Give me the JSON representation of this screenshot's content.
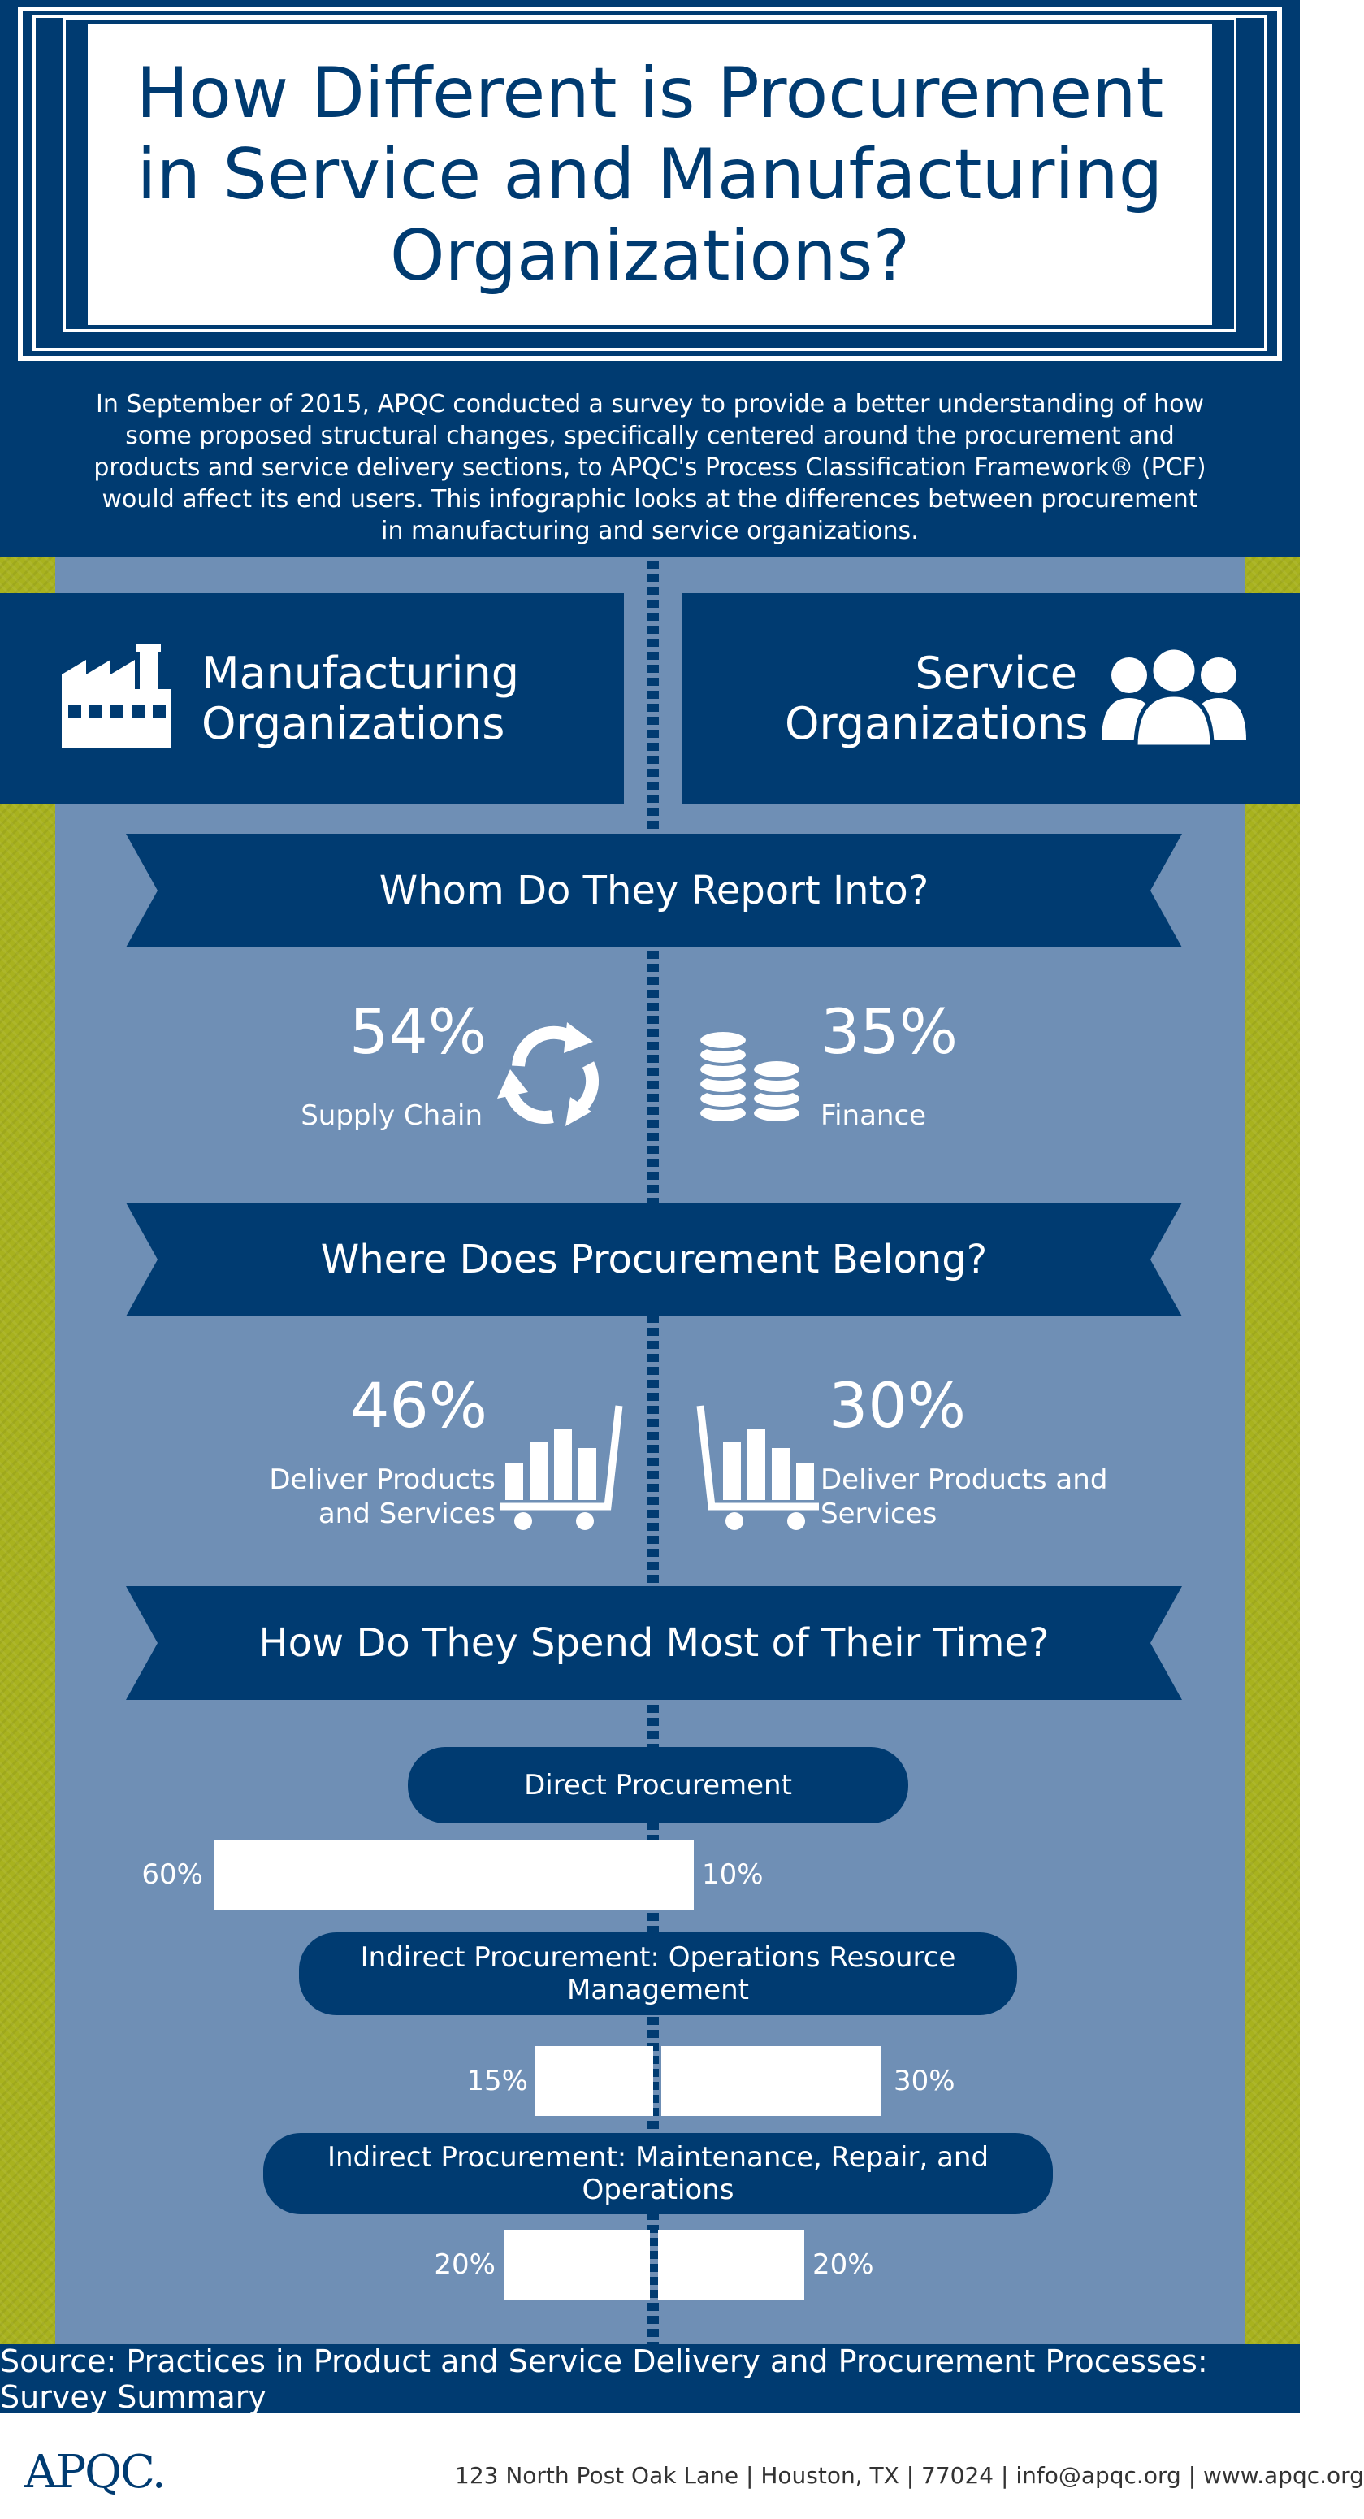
{
  "header": {
    "title": "How Different is Procurement in Service and Manufacturing Organizations?",
    "intro": "In September of 2015, APQC conducted a survey to provide a better understanding of how some proposed structural changes, specifically centered around the procurement and products and service delivery sections, to APQC's Process Classification Framework® (PCF) would affect its end users. This infographic looks at  the differences between procurement in manufacturing and service organizations."
  },
  "orgs": {
    "left": "Manufacturing Organizations",
    "right": "Service Organizations"
  },
  "sections": {
    "report": {
      "title": "Whom Do They Report Into?",
      "left_value": "54%",
      "left_label": "Supply Chain",
      "right_value": "35%",
      "right_label": "Finance"
    },
    "belong": {
      "title": "Where Does Procurement Belong?",
      "left_value": "46%",
      "left_label": "Deliver Products and Services",
      "right_value": "30%",
      "right_label": "Deliver Products and Services"
    },
    "time": {
      "title": "How Do They Spend Most of Their Time?",
      "categories": [
        {
          "label": "Direct Procurement",
          "left": "60%",
          "right": "10%",
          "left_value": 60,
          "right_value": 10
        },
        {
          "label": "Indirect Procurement: Operations Resource Management",
          "left": "15%",
          "right": "30%",
          "left_value": 15,
          "right_value": 30
        },
        {
          "label": "Indirect Procurement: Maintenance, Repair, and Operations",
          "left": "20%",
          "right": "20%",
          "left_value": 20,
          "right_value": 20
        }
      ]
    }
  },
  "footer": {
    "source": "Source: Practices in Product and Service Delivery and Procurement Processes: Survey Summary",
    "logo": "APQC.",
    "address": "123 North Post Oak Lane  |  Houston, TX  |  77024  |  info@apqc.org  |  www.apqc.org"
  },
  "colors": {
    "navy": "#003b71",
    "steel_blue": "#6f8fb5",
    "olive": "#a8b21e",
    "white": "#ffffff"
  },
  "icons": [
    "factory-icon",
    "people-icon",
    "recycle-arrows-icon",
    "coin-stacks-icon",
    "cart-chart-icon"
  ]
}
